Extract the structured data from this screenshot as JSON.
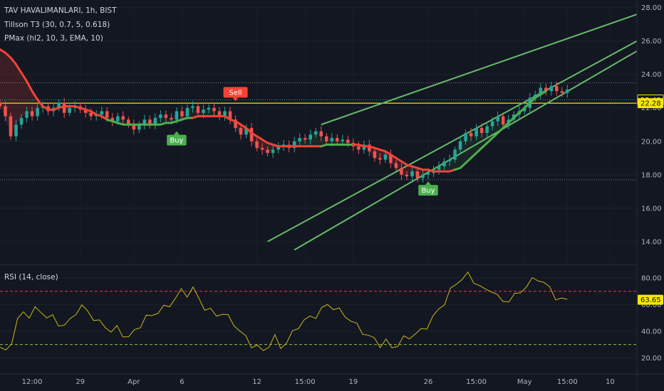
{
  "legend": {
    "title": "TAV HAVALIMANLARI, 1h, BIST",
    "indicator1": "Tillson T3 (30, 0.7, 5, 0.618)",
    "indicator2": "PMax (hl2, 10, 3, EMA, 10)",
    "rsi": "RSI (14, close)"
  },
  "colors": {
    "background": "#131722",
    "bull": "#26a69a",
    "bear": "#ef5350",
    "t3_up": "#4caf50",
    "t3_down": "#f44336",
    "channel": "#66bb6a",
    "level": "#f7e600",
    "rsi": "#c9b61a",
    "axis_text": "#b2b5be"
  },
  "chart_data": [
    {
      "type": "candlestick",
      "name": "price",
      "x_labels": [
        {
          "t": 6,
          "label": "12:00"
        },
        {
          "t": 15,
          "label": "29"
        },
        {
          "t": 25,
          "label": "Apr"
        },
        {
          "t": 34,
          "label": "6"
        },
        {
          "t": 48,
          "label": "12"
        },
        {
          "t": 57,
          "label": "15:00"
        },
        {
          "t": 66,
          "label": "19"
        },
        {
          "t": 80,
          "label": "26"
        },
        {
          "t": 89,
          "label": "15:00"
        },
        {
          "t": 98,
          "label": "May"
        },
        {
          "t": 106,
          "label": "15:00"
        },
        {
          "t": 114,
          "label": "10"
        }
      ],
      "t_range": [
        0,
        119
      ],
      "ylim": [
        12.8,
        28.2
      ],
      "y_ticks": [
        "14.00",
        "16.00",
        "18.00",
        "20.00",
        "22.00",
        "24.00",
        "26.00",
        "28.00"
      ],
      "closes": [
        22.1,
        21.5,
        20.3,
        21.0,
        21.4,
        21.8,
        21.5,
        22.0,
        22.1,
        21.8,
        22.0,
        22.3,
        21.7,
        22.0,
        22.1,
        21.9,
        21.7,
        21.5,
        21.6,
        21.8,
        21.4,
        21.2,
        21.5,
        21.3,
        21.0,
        20.7,
        21.0,
        21.3,
        21.0,
        21.4,
        21.6,
        21.4,
        21.3,
        21.8,
        21.5,
        22.0,
        22.1,
        21.7,
        21.9,
        22.0,
        21.8,
        21.5,
        21.8,
        21.3,
        20.8,
        20.4,
        20.8,
        20.0,
        19.6,
        19.5,
        19.3,
        19.5,
        19.7,
        19.8,
        19.6,
        20.0,
        20.2,
        20.1,
        20.4,
        20.6,
        20.3,
        20.0,
        20.2,
        20.0,
        20.1,
        19.9,
        19.7,
        19.5,
        19.8,
        19.4,
        19.0,
        18.9,
        19.2,
        18.7,
        18.4,
        18.0,
        17.9,
        18.2,
        17.8,
        18.0,
        18.1,
        18.3,
        18.5,
        18.8,
        18.9,
        19.5,
        20.0,
        20.5,
        20.3,
        20.8,
        20.5,
        20.9,
        21.2,
        21.5,
        21.0,
        21.3,
        21.6,
        21.8,
        22.0,
        22.6,
        22.8,
        23.2,
        23.0,
        23.3,
        23.0,
        22.9,
        23.1
      ],
      "pmax": {
        "values": [
          25.5,
          25.3,
          25.0,
          24.6,
          24.1,
          23.6,
          23.0,
          22.5,
          22.1,
          21.9,
          21.9,
          22.0,
          22.1,
          22.1,
          22.1,
          22.0,
          21.9,
          21.8,
          21.6,
          21.5,
          21.3,
          21.2,
          21.1,
          21.0,
          21.0,
          21.0,
          21.0,
          21.0,
          21.0,
          21.0,
          21.0,
          21.1,
          21.1,
          21.2,
          21.3,
          21.4,
          21.4,
          21.5,
          21.5,
          21.5,
          21.5,
          21.5,
          21.5,
          21.3,
          21.2,
          21.0,
          20.8,
          20.5,
          20.3,
          20.1,
          19.9,
          19.8,
          19.7,
          19.7,
          19.7,
          19.7,
          19.7,
          19.7,
          19.7,
          19.7,
          19.7,
          19.8,
          19.8,
          19.8,
          19.8,
          19.8,
          19.8,
          19.8,
          19.7,
          19.7,
          19.6,
          19.5,
          19.4,
          19.2,
          19.0,
          18.8,
          18.6,
          18.5,
          18.4,
          18.3,
          18.3,
          18.2,
          18.2,
          18.2,
          18.2,
          18.3,
          18.4,
          18.7,
          19.0,
          19.3,
          19.6,
          19.9,
          20.2,
          20.5,
          20.8,
          21.1,
          21.4,
          21.7,
          22.0,
          22.3,
          22.6,
          22.8,
          23.0
        ],
        "trend_segments": [
          {
            "from": 0,
            "to": 20,
            "direction": "down"
          },
          {
            "from": 20,
            "to": 36,
            "direction": "up"
          },
          {
            "from": 36,
            "to": 60,
            "direction": "down"
          },
          {
            "from": 60,
            "to": 66,
            "direction": "up"
          },
          {
            "from": 66,
            "to": 85,
            "direction": "down"
          },
          {
            "from": 85,
            "to": 102,
            "direction": "up"
          }
        ]
      },
      "signals": [
        {
          "label": "Buy",
          "t": 33,
          "price": 20.6,
          "side": "buy"
        },
        {
          "label": "Sell",
          "t": 44,
          "price": 22.4,
          "side": "sell"
        },
        {
          "label": "Buy",
          "t": 80,
          "price": 17.6,
          "side": "buy"
        }
      ],
      "channel_lines": [
        {
          "name": "upper",
          "from": [
            60,
            21.0
          ],
          "to": [
            119,
            27.6
          ]
        },
        {
          "name": "middle",
          "from": [
            50,
            14.0
          ],
          "to": [
            119,
            26.0
          ]
        },
        {
          "name": "lower",
          "from": [
            55,
            13.5
          ],
          "to": [
            119,
            25.4
          ]
        }
      ],
      "levels": [
        {
          "name": "upper-dotted",
          "value": 23.5,
          "style": "dotted",
          "color": "#787b86"
        },
        {
          "name": "current-price",
          "value": 22.48,
          "style": "dotted",
          "color": "#2aa3b3",
          "label": "22.48"
        },
        {
          "name": "pmax-level",
          "value": 22.28,
          "style": "solid",
          "color": "#f7e600",
          "label": "22.28"
        },
        {
          "name": "lower-dotted",
          "value": 17.7,
          "style": "dotted",
          "color": "#787b86"
        }
      ]
    },
    {
      "type": "line",
      "name": "RSI",
      "ylim": [
        10,
        88
      ],
      "y_ticks": [
        "20.00",
        "40.00",
        "60.00",
        "80.00"
      ],
      "overbought": 70,
      "oversold": 30,
      "last_value_label": "63.65",
      "values": [
        28,
        24,
        33,
        48,
        54,
        52,
        56,
        55,
        51,
        50,
        46,
        44,
        48,
        55,
        58,
        55,
        50,
        46,
        44,
        40,
        42,
        38,
        35,
        40,
        45,
        50,
        52,
        55,
        57,
        60,
        65,
        70,
        68,
        72,
        64,
        58,
        55,
        52,
        54,
        50,
        46,
        40,
        35,
        30,
        28,
        25,
        30,
        35,
        28,
        32,
        38,
        44,
        48,
        50,
        52,
        56,
        60,
        58,
        55,
        52,
        48,
        44,
        40,
        36,
        34,
        30,
        32,
        28,
        30,
        34,
        36,
        38,
        40,
        44,
        50,
        56,
        62,
        70,
        76,
        80,
        82,
        78,
        74,
        70,
        72,
        66,
        62,
        64,
        66,
        70,
        74,
        78,
        80,
        76,
        72,
        66,
        63,
        64
      ]
    }
  ]
}
